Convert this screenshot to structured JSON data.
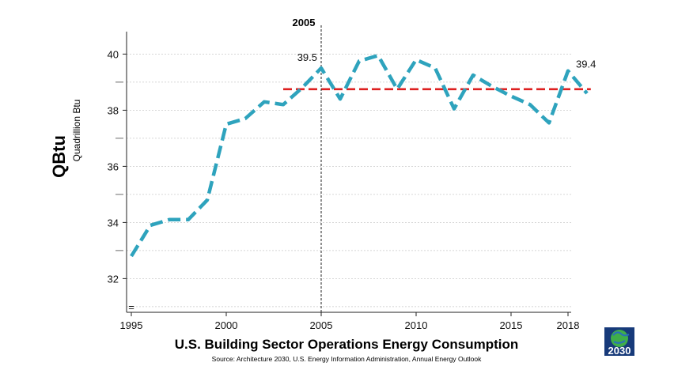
{
  "chart_data": {
    "type": "line",
    "title": "U.S. Building Sector Operations Energy Consumption",
    "source": "Source: Architecture 2030, U.S. Energy Information Administration, Annual Energy Outlook",
    "ylabel": "QBtu",
    "ylabel_sub": "Quadrillion Btu",
    "xlabel": "",
    "xlim": [
      1995,
      2019
    ],
    "ylim": [
      30.8,
      40.8
    ],
    "y_ticks": [
      32,
      34,
      36,
      38,
      40
    ],
    "y_minor_ticks": [
      33,
      35,
      37,
      39
    ],
    "x_ticks": [
      1995,
      2000,
      2005,
      2010,
      2015,
      2018
    ],
    "grid": true,
    "series": [
      {
        "name": "Building sector operations energy consumption",
        "color": "#2ea3bd",
        "x": [
          1995,
          1996,
          1997,
          1998,
          1999,
          2000,
          2001,
          2002,
          2003,
          2004,
          2005,
          2006,
          2007,
          2008,
          2009,
          2010,
          2011,
          2012,
          2013,
          2014,
          2015,
          2016,
          2017,
          2018,
          2019
        ],
        "values": [
          32.8,
          33.9,
          34.1,
          34.1,
          34.8,
          37.5,
          37.7,
          38.3,
          38.2,
          38.8,
          39.5,
          38.4,
          39.75,
          39.95,
          38.75,
          39.8,
          39.5,
          38.05,
          39.25,
          38.85,
          38.5,
          38.2,
          37.55,
          39.4,
          38.6
        ]
      }
    ],
    "reference_line": {
      "value": 38.75,
      "x_start": 2003,
      "x_end": 2019.2,
      "color": "#dd2020"
    },
    "vertical_marker": {
      "x": 2005,
      "label": "2005"
    },
    "annotations": [
      {
        "x": 2005,
        "y": 39.5,
        "text": "39.5"
      },
      {
        "x": 2018,
        "y": 39.4,
        "text": "39.4"
      }
    ],
    "axis_break_symbol": "="
  },
  "logo": {
    "name": "2030 challenge logo",
    "caption": "2030",
    "colors": {
      "bg": "#173a7a",
      "globe": "#3fae49"
    }
  }
}
